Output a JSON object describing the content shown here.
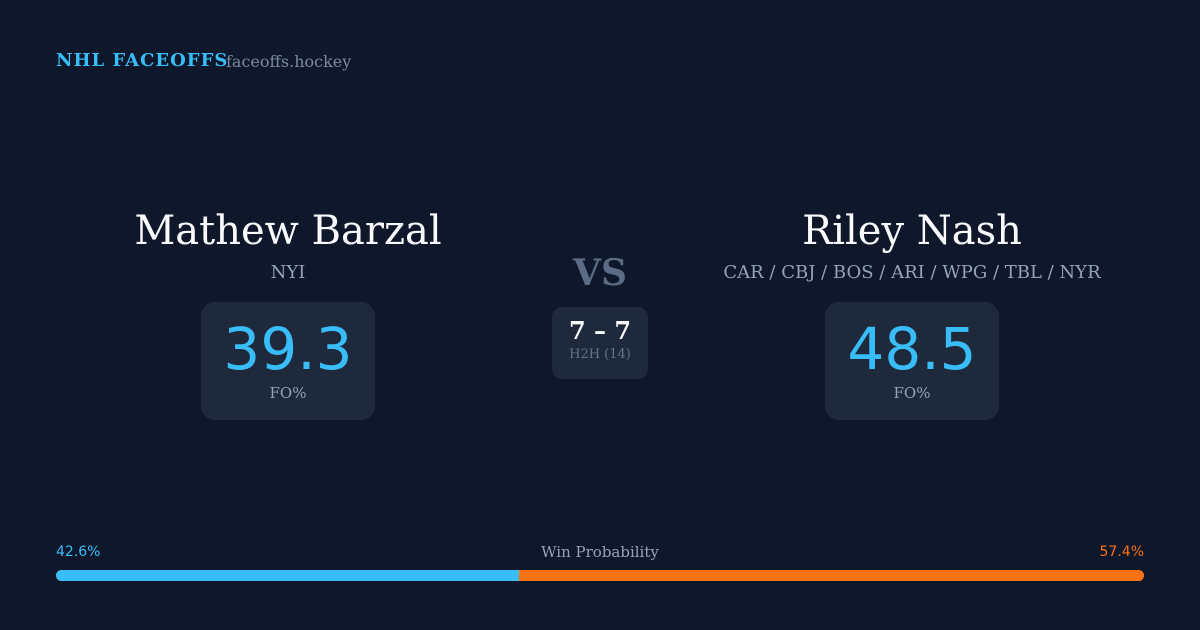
{
  "header": {
    "brand": "NHL FACEOFFS",
    "site": "faceoffs.hockey"
  },
  "player1": {
    "name": "Mathew Barzal",
    "team": "NYI",
    "fo_pct": "39.3",
    "fo_label": "FO%"
  },
  "player2": {
    "name": "Riley Nash",
    "team": "CAR / CBJ / BOS / ARI / WPG / TBL / NYR",
    "fo_pct": "48.5",
    "fo_label": "FO%"
  },
  "versus": {
    "label": "VS",
    "score": "7 – 7",
    "h2h": "H2H (14)"
  },
  "win_probability": {
    "label": "Win Probability",
    "left": "42.6%",
    "right": "57.4%",
    "left_value": 42.6,
    "right_value": 57.4,
    "colors": {
      "left": "#38bdf8",
      "right": "#f97316"
    }
  }
}
